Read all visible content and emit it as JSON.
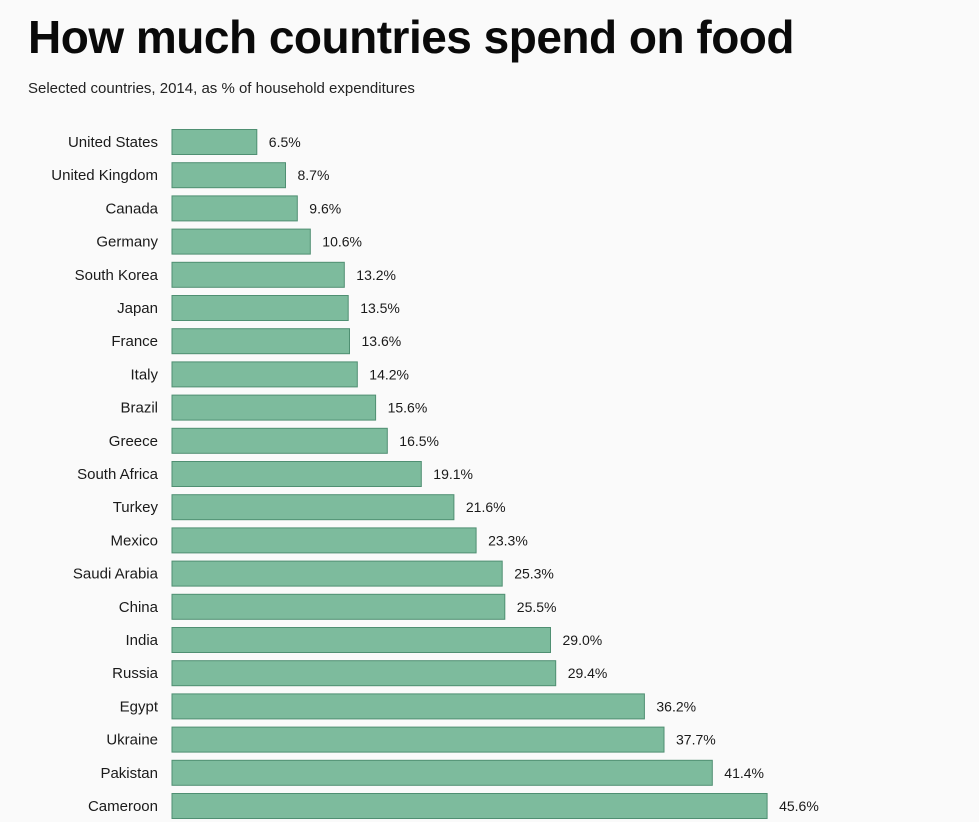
{
  "chart_data": {
    "type": "bar",
    "orientation": "horizontal",
    "title": "How much countries spend on food",
    "subtitle": "Selected countries, 2014, as % of household expenditures",
    "bar_color": "#7dbb9d",
    "grid": false,
    "categories": [
      "United States",
      "United Kingdom",
      "Canada",
      "Germany",
      "South Korea",
      "Japan",
      "France",
      "Italy",
      "Brazil",
      "Greece",
      "South Africa",
      "Turkey",
      "Mexico",
      "Saudi Arabia",
      "China",
      "India",
      "Russia",
      "Egypt",
      "Ukraine",
      "Pakistan",
      "Cameroon"
    ],
    "values": [
      6.5,
      8.7,
      9.6,
      10.6,
      13.2,
      13.5,
      13.6,
      14.2,
      15.6,
      16.5,
      19.1,
      21.6,
      23.3,
      25.3,
      25.5,
      29.0,
      29.4,
      36.2,
      37.7,
      41.4,
      45.6
    ],
    "value_labels": [
      "6.5%",
      "8.7%",
      "9.6%",
      "10.6%",
      "13.2%",
      "13.5%",
      "13.6%",
      "14.2%",
      "15.6%",
      "16.5%",
      "19.1%",
      "21.6%",
      "23.3%",
      "25.3%",
      "25.5%",
      "29.0%",
      "29.4%",
      "36.2%",
      "37.7%",
      "41.4%",
      "45.6%"
    ]
  }
}
